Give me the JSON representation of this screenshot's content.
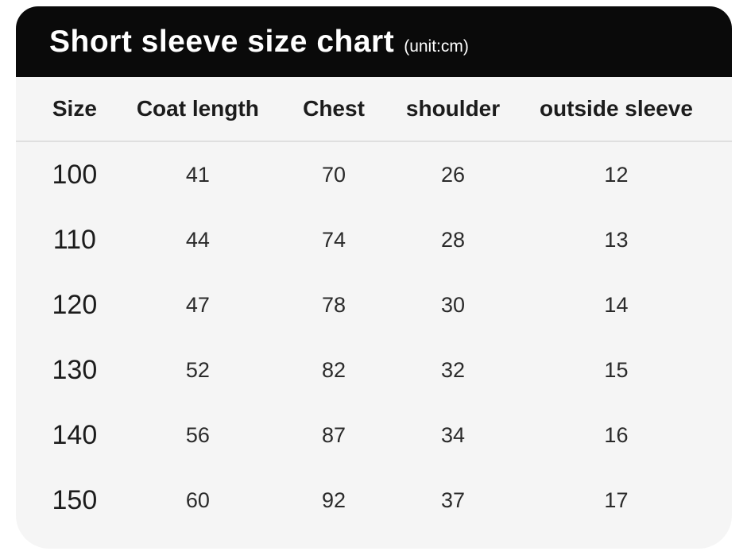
{
  "header": {
    "title": "Short sleeve size chart",
    "unit_label": "(unit:cm)"
  },
  "colors": {
    "banner_bg": "#0a0a0a",
    "banner_text": "#ffffff",
    "card_bg": "#f5f5f5",
    "divider": "#dfdfdf",
    "text": "#222222"
  },
  "chart_data": {
    "type": "table",
    "title": "Short sleeve size chart",
    "unit": "cm",
    "columns": [
      "Size",
      "Coat length",
      "Chest",
      "shoulder",
      "outside sleeve"
    ],
    "rows": [
      [
        "100",
        "41",
        "70",
        "26",
        "12"
      ],
      [
        "110",
        "44",
        "74",
        "28",
        "13"
      ],
      [
        "120",
        "47",
        "78",
        "30",
        "14"
      ],
      [
        "130",
        "52",
        "82",
        "32",
        "15"
      ],
      [
        "140",
        "56",
        "87",
        "34",
        "16"
      ],
      [
        "150",
        "60",
        "92",
        "37",
        "17"
      ]
    ]
  }
}
